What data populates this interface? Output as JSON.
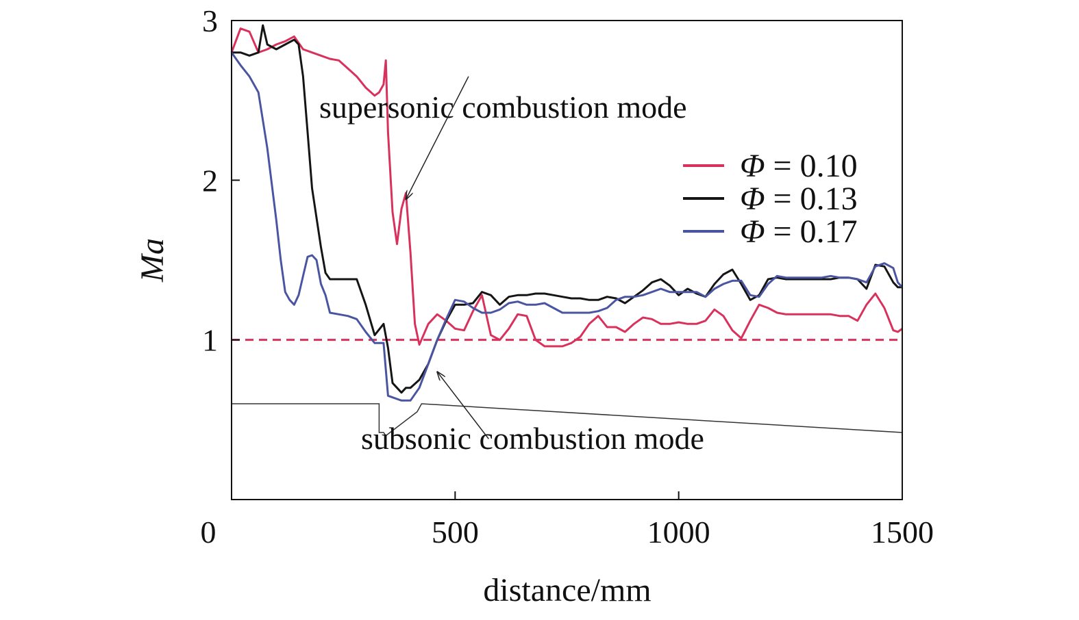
{
  "chart_data": {
    "type": "line",
    "title": "",
    "xlabel": "distance/mm",
    "ylabel": "Ma",
    "xlim": [
      0,
      1500
    ],
    "ylim": [
      0,
      3
    ],
    "x_ticks": [
      0,
      500,
      1000,
      1500
    ],
    "y_ticks": [
      1,
      2,
      3
    ],
    "legend_position": "right",
    "series": [
      {
        "name": "Φ = 0.10",
        "legend_symbol": "Φ",
        "legend_value": "= 0.10",
        "color": "#d8315b",
        "x": [
          0,
          20,
          40,
          60,
          80,
          100,
          120,
          140,
          160,
          180,
          200,
          220,
          240,
          260,
          280,
          300,
          320,
          330,
          340,
          345,
          350,
          360,
          370,
          380,
          390,
          400,
          410,
          420,
          440,
          460,
          480,
          500,
          520,
          540,
          560,
          580,
          600,
          620,
          640,
          660,
          680,
          700,
          720,
          740,
          760,
          780,
          800,
          820,
          840,
          860,
          880,
          900,
          920,
          940,
          960,
          980,
          1000,
          1020,
          1040,
          1060,
          1080,
          1100,
          1120,
          1140,
          1160,
          1180,
          1200,
          1220,
          1240,
          1260,
          1280,
          1300,
          1320,
          1340,
          1360,
          1380,
          1400,
          1420,
          1440,
          1460,
          1480,
          1490,
          1500
        ],
        "y": [
          2.8,
          2.95,
          2.93,
          2.8,
          2.82,
          2.85,
          2.87,
          2.9,
          2.82,
          2.8,
          2.78,
          2.76,
          2.75,
          2.7,
          2.65,
          2.58,
          2.53,
          2.55,
          2.6,
          2.75,
          2.3,
          1.8,
          1.6,
          1.82,
          1.92,
          1.55,
          1.1,
          0.97,
          1.1,
          1.16,
          1.12,
          1.07,
          1.06,
          1.18,
          1.28,
          1.03,
          1.0,
          1.07,
          1.16,
          1.15,
          1.0,
          0.96,
          0.96,
          0.96,
          0.98,
          1.02,
          1.1,
          1.15,
          1.08,
          1.08,
          1.05,
          1.1,
          1.14,
          1.13,
          1.1,
          1.1,
          1.11,
          1.1,
          1.1,
          1.12,
          1.19,
          1.15,
          1.06,
          1.01,
          1.12,
          1.22,
          1.2,
          1.17,
          1.16,
          1.16,
          1.16,
          1.16,
          1.16,
          1.16,
          1.15,
          1.15,
          1.12,
          1.22,
          1.29,
          1.2,
          1.06,
          1.05,
          1.07
        ]
      },
      {
        "name": "Φ = 0.13",
        "legend_symbol": "Φ",
        "legend_value": "= 0.13",
        "color": "#151515",
        "x": [
          0,
          20,
          40,
          60,
          70,
          80,
          100,
          120,
          140,
          150,
          160,
          170,
          180,
          200,
          210,
          220,
          240,
          260,
          280,
          300,
          320,
          340,
          350,
          360,
          370,
          380,
          390,
          400,
          420,
          440,
          460,
          480,
          500,
          520,
          540,
          560,
          580,
          600,
          620,
          640,
          660,
          680,
          700,
          720,
          740,
          760,
          780,
          800,
          820,
          840,
          860,
          880,
          900,
          920,
          940,
          960,
          980,
          1000,
          1020,
          1040,
          1060,
          1080,
          1100,
          1120,
          1140,
          1160,
          1180,
          1200,
          1220,
          1240,
          1260,
          1280,
          1300,
          1320,
          1340,
          1360,
          1380,
          1400,
          1420,
          1440,
          1460,
          1480,
          1490,
          1500
        ],
        "y": [
          2.8,
          2.8,
          2.78,
          2.8,
          2.97,
          2.85,
          2.82,
          2.85,
          2.88,
          2.85,
          2.65,
          2.3,
          1.95,
          1.58,
          1.42,
          1.38,
          1.38,
          1.38,
          1.38,
          1.22,
          1.03,
          1.1,
          0.95,
          0.73,
          0.7,
          0.67,
          0.7,
          0.7,
          0.75,
          0.85,
          1.0,
          1.12,
          1.22,
          1.22,
          1.23,
          1.3,
          1.28,
          1.22,
          1.27,
          1.28,
          1.28,
          1.29,
          1.29,
          1.28,
          1.27,
          1.26,
          1.26,
          1.25,
          1.25,
          1.27,
          1.26,
          1.23,
          1.27,
          1.31,
          1.36,
          1.38,
          1.34,
          1.28,
          1.32,
          1.29,
          1.27,
          1.35,
          1.41,
          1.44,
          1.35,
          1.25,
          1.28,
          1.38,
          1.39,
          1.38,
          1.38,
          1.38,
          1.38,
          1.38,
          1.38,
          1.39,
          1.39,
          1.38,
          1.32,
          1.47,
          1.46,
          1.36,
          1.33,
          1.33
        ]
      },
      {
        "name": "Φ = 0.17",
        "legend_symbol": "Φ",
        "legend_value": "= 0.17",
        "color": "#4a55a2",
        "x": [
          0,
          20,
          40,
          60,
          80,
          100,
          110,
          120,
          130,
          140,
          150,
          160,
          170,
          180,
          190,
          200,
          210,
          220,
          240,
          260,
          280,
          300,
          320,
          340,
          350,
          360,
          370,
          380,
          390,
          400,
          420,
          440,
          460,
          480,
          500,
          520,
          540,
          560,
          580,
          600,
          620,
          640,
          660,
          680,
          700,
          720,
          740,
          760,
          780,
          800,
          820,
          840,
          860,
          880,
          900,
          920,
          940,
          960,
          980,
          1000,
          1020,
          1040,
          1060,
          1080,
          1100,
          1120,
          1140,
          1160,
          1180,
          1200,
          1220,
          1240,
          1260,
          1280,
          1300,
          1320,
          1340,
          1360,
          1380,
          1400,
          1420,
          1440,
          1460,
          1480,
          1490,
          1500
        ],
        "y": [
          2.8,
          2.72,
          2.65,
          2.55,
          2.2,
          1.75,
          1.5,
          1.3,
          1.25,
          1.22,
          1.28,
          1.4,
          1.52,
          1.53,
          1.5,
          1.35,
          1.28,
          1.17,
          1.16,
          1.15,
          1.13,
          1.05,
          0.98,
          0.98,
          0.65,
          0.64,
          0.63,
          0.62,
          0.62,
          0.62,
          0.7,
          0.85,
          1.0,
          1.13,
          1.25,
          1.24,
          1.2,
          1.17,
          1.17,
          1.19,
          1.23,
          1.24,
          1.22,
          1.22,
          1.23,
          1.2,
          1.17,
          1.17,
          1.17,
          1.17,
          1.18,
          1.2,
          1.25,
          1.27,
          1.27,
          1.28,
          1.3,
          1.32,
          1.3,
          1.3,
          1.3,
          1.3,
          1.27,
          1.32,
          1.35,
          1.37,
          1.37,
          1.28,
          1.27,
          1.35,
          1.4,
          1.39,
          1.39,
          1.39,
          1.39,
          1.39,
          1.4,
          1.39,
          1.39,
          1.38,
          1.36,
          1.46,
          1.48,
          1.45,
          1.36,
          1.33
        ]
      }
    ],
    "reference_line": {
      "y": 1,
      "color": "#d8315b",
      "style": "dashed"
    },
    "geometry_outline": {
      "color": "#333333",
      "x": [
        0,
        330,
        330,
        340,
        345,
        415,
        425,
        1500
      ],
      "y": [
        0.6,
        0.6,
        0.42,
        0.42,
        0.4,
        0.55,
        0.6,
        0.42
      ]
    },
    "annotations": [
      {
        "text": "supersonic combustion mode",
        "arrow_from": [
          530,
          2.65
        ],
        "arrow_to": [
          390,
          1.88
        ]
      },
      {
        "text": "subsonic combustion mode",
        "arrow_from": [
          575,
          0.38
        ],
        "arrow_to": [
          460,
          0.8
        ]
      }
    ]
  }
}
